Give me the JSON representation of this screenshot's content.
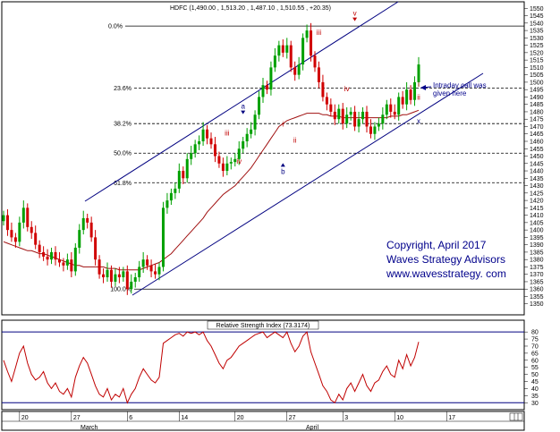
{
  "colors": {
    "up": "#00a000",
    "down": "#d00000",
    "ma": "#a01010",
    "channel": "#000080",
    "fib": "#000000",
    "rsi": "#c00000",
    "wave_red": "#c00000",
    "wave_blue": "#000080",
    "note": "#00008b"
  },
  "chart_data": [
    {
      "type": "candlestick",
      "title": "HDFC (1,490.00 , 1,513.20 , 1,487.10 , 1,510.55 , +20.35)",
      "ylim": [
        1345,
        1552
      ],
      "yticks": [
        1350,
        1355,
        1360,
        1365,
        1370,
        1375,
        1380,
        1385,
        1390,
        1395,
        1400,
        1405,
        1410,
        1415,
        1420,
        1425,
        1430,
        1435,
        1440,
        1445,
        1450,
        1455,
        1460,
        1465,
        1470,
        1475,
        1480,
        1485,
        1490,
        1495,
        1500,
        1505,
        1510,
        1515,
        1520,
        1525,
        1530,
        1535,
        1540,
        1545,
        1550
      ],
      "fib_levels": [
        {
          "label": "0.0%",
          "value": 1538
        },
        {
          "label": "23.6%",
          "value": 1496
        },
        {
          "label": "38.2%",
          "value": 1472
        },
        {
          "label": "50.0%",
          "value": 1452
        },
        {
          "label": "61.8%",
          "value": 1432
        },
        {
          "label": "100.0%",
          "value": 1360
        }
      ],
      "close": [
        1410,
        1400,
        1395,
        1392,
        1405,
        1415,
        1402,
        1398,
        1390,
        1385,
        1382,
        1380,
        1385,
        1380,
        1378,
        1376,
        1380,
        1372,
        1388,
        1400,
        1408,
        1405,
        1395,
        1380,
        1370,
        1368,
        1373,
        1365,
        1370,
        1368,
        1372,
        1360,
        1365,
        1368,
        1375,
        1380,
        1376,
        1372,
        1370,
        1375,
        1415,
        1420,
        1425,
        1428,
        1440,
        1435,
        1448,
        1452,
        1458,
        1460,
        1468,
        1462,
        1458,
        1450,
        1445,
        1440,
        1445,
        1446,
        1448,
        1455,
        1460,
        1465,
        1468,
        1478,
        1490,
        1498,
        1495,
        1510,
        1518,
        1525,
        1520,
        1525,
        1510,
        1505,
        1512,
        1530,
        1535,
        1518,
        1510,
        1500,
        1490,
        1485,
        1480,
        1475,
        1482,
        1472,
        1478,
        1480,
        1470,
        1475,
        1480,
        1470,
        1465,
        1470,
        1472,
        1478,
        1485,
        1480,
        1478,
        1490,
        1485,
        1495,
        1488,
        1500,
        1512
      ],
      "ma": [
        1392,
        1391,
        1390,
        1389,
        1388,
        1387,
        1386,
        1386,
        1385,
        1384,
        1384,
        1383,
        1382,
        1381,
        1380,
        1379,
        1378,
        1377,
        1376,
        1376,
        1375,
        1375,
        1375,
        1375,
        1375,
        1375,
        1374,
        1374,
        1374,
        1373,
        1373,
        1373,
        1373,
        1373,
        1373,
        1374,
        1375,
        1376,
        1377,
        1378,
        1380,
        1382,
        1384,
        1387,
        1390,
        1393,
        1396,
        1399,
        1402,
        1405,
        1408,
        1412,
        1415,
        1418,
        1421,
        1424,
        1426,
        1428,
        1430,
        1433,
        1436,
        1439,
        1442,
        1446,
        1450,
        1454,
        1458,
        1462,
        1466,
        1470,
        1472,
        1474,
        1475,
        1476,
        1477,
        1478,
        1479,
        1479,
        1479,
        1479,
        1478,
        1478,
        1477,
        1477,
        1477,
        1476,
        1476,
        1476,
        1476,
        1476,
        1476,
        1476,
        1476,
        1476,
        1476,
        1476,
        1476,
        1477,
        1477,
        1477,
        1478,
        1478,
        1479,
        1480,
        1481
      ],
      "price_annotations": [
        {
          "text": "a",
          "value": 1482,
          "index": 60,
          "color": "wave_blue",
          "marker": "v"
        },
        {
          "text": "b",
          "value": 1438,
          "index": 70,
          "color": "wave_blue",
          "marker": "^"
        },
        {
          "text": "iii",
          "value": 1464,
          "index": 56,
          "color": "wave_red"
        },
        {
          "text": "iv",
          "value": 1445,
          "index": 59,
          "color": "wave_red"
        },
        {
          "text": "i",
          "value": 1470,
          "index": 70,
          "color": "wave_red"
        },
        {
          "text": "ii",
          "value": 1459,
          "index": 73,
          "color": "wave_red"
        },
        {
          "text": "iii",
          "value": 1532,
          "index": 79,
          "color": "wave_red"
        },
        {
          "text": "iv",
          "value": 1494,
          "index": 86,
          "color": "wave_red"
        },
        {
          "text": "v",
          "value": 1545,
          "index": 88,
          "color": "wave_red",
          "marker": "v"
        },
        {
          "text": "x",
          "value": 1472,
          "index": 118,
          "color": "wave_blue"
        },
        {
          "text": "i",
          "value": 1497,
          "index": 119,
          "color": "wave_red"
        },
        {
          "text": "ii",
          "value": 1488,
          "index": 123,
          "color": "wave_red"
        }
      ],
      "note": [
        "Intraday call was",
        "given here"
      ],
      "copyright": [
        "Copyright, April 2017",
        "Waves Strategy Advisors",
        "www.wavesstrategy. com"
      ]
    },
    {
      "type": "line",
      "title": "Relative Strength Index (73.3174)",
      "ylim": [
        27,
        82
      ],
      "yticks": [
        30,
        35,
        40,
        45,
        50,
        55,
        60,
        65,
        70,
        75,
        80
      ],
      "guide_lines": [
        80,
        30
      ],
      "values": [
        60,
        52,
        45,
        55,
        65,
        70,
        58,
        50,
        46,
        48,
        52,
        44,
        40,
        44,
        38,
        36,
        40,
        34,
        48,
        56,
        62,
        58,
        50,
        42,
        36,
        34,
        40,
        32,
        36,
        34,
        40,
        30,
        36,
        40,
        48,
        54,
        50,
        46,
        44,
        48,
        72,
        74,
        76,
        78,
        79,
        77,
        80,
        79,
        80,
        78,
        80,
        74,
        70,
        64,
        58,
        54,
        60,
        62,
        66,
        70,
        72,
        74,
        76,
        78,
        79,
        80,
        76,
        78,
        80,
        78,
        76,
        80,
        72,
        66,
        70,
        77,
        80,
        66,
        58,
        50,
        42,
        38,
        32,
        30,
        36,
        32,
        40,
        44,
        38,
        44,
        50,
        42,
        38,
        44,
        46,
        52,
        56,
        50,
        48,
        60,
        54,
        64,
        56,
        62,
        73
      ]
    }
  ],
  "xaxis": {
    "ticks": [
      "20",
      "27",
      "6",
      "14",
      "20",
      "27",
      "3",
      "10",
      "17"
    ],
    "months": [
      "March",
      "April"
    ]
  }
}
